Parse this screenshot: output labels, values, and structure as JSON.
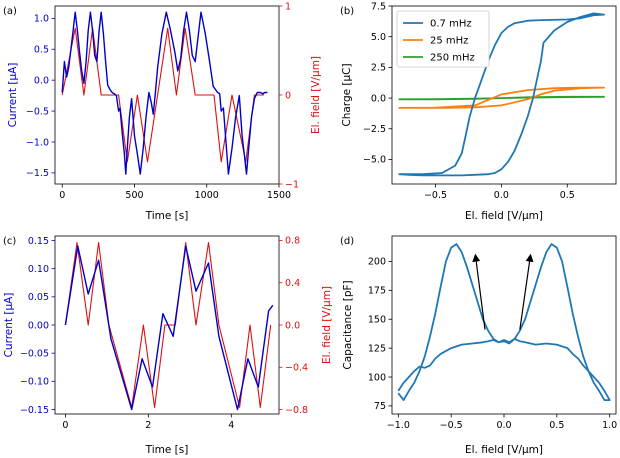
{
  "colors": {
    "blue": "#0000cc",
    "red": "#dd1111",
    "c0": "#1f77b4",
    "c1": "#ff7f0e",
    "c2": "#2ca02c"
  },
  "chart_data": [
    {
      "panel": "(a)",
      "type": "line",
      "xlabel": "Time [s]",
      "ylabel_left": "Current [μA]",
      "ylabel_right": "El. field [V/μm]",
      "xlim": [
        -50,
        1500
      ],
      "ylim_left": [
        -1.68,
        1.2
      ],
      "ylim_right": [
        -1,
        1
      ],
      "xticks": [
        0,
        500,
        1000,
        1500
      ],
      "yticks_left": [
        -1.5,
        -1.0,
        -0.5,
        0.0,
        0.5,
        1.0
      ],
      "yticks_right": [
        -1,
        0,
        1
      ],
      "series": [
        {
          "name": "Current",
          "axis": "left",
          "color": "blue",
          "x": [
            0,
            15,
            30,
            45,
            60,
            75,
            90,
            105,
            120,
            135,
            150,
            165,
            180,
            195,
            210,
            225,
            240,
            255,
            270,
            285,
            300,
            315,
            330,
            345,
            360,
            375,
            390,
            400,
            415,
            430,
            440,
            450,
            465,
            480,
            500,
            520,
            540,
            560,
            580,
            600,
            615,
            630,
            645,
            660,
            690,
            720,
            750,
            780,
            800,
            820,
            840,
            860,
            880,
            900,
            920,
            945,
            960,
            990,
            1020,
            1045,
            1060,
            1075,
            1090,
            1100,
            1115,
            1130,
            1150,
            1175,
            1200,
            1225,
            1245,
            1260,
            1275,
            1290,
            1310,
            1330,
            1350,
            1370,
            1390,
            1400,
            1420
          ],
          "y": [
            -0.2,
            0.3,
            0.05,
            0.2,
            0.5,
            0.8,
            1.1,
            0.8,
            0.45,
            0.15,
            -0.05,
            0.3,
            0.8,
            1.1,
            0.8,
            0.4,
            0.3,
            0.8,
            1.1,
            0.75,
            0.3,
            -0.08,
            -0.15,
            -0.2,
            -0.22,
            -0.25,
            -0.5,
            -0.45,
            -0.85,
            -1.2,
            -1.52,
            -1.1,
            -0.6,
            -0.3,
            -0.9,
            -1.2,
            -1.52,
            -1.1,
            -0.6,
            -0.2,
            -0.35,
            -0.55,
            -0.2,
            0.2,
            0.75,
            1.1,
            0.8,
            0.45,
            0.15,
            0.35,
            0.8,
            1.1,
            0.8,
            0.4,
            0.3,
            0.8,
            1.1,
            0.75,
            0.3,
            -0.1,
            -0.15,
            -0.2,
            -0.22,
            -0.5,
            -0.45,
            -0.9,
            -1.52,
            -1.1,
            -0.6,
            -0.25,
            -0.9,
            -1.2,
            -1.52,
            -1.1,
            -0.6,
            -0.3,
            -0.2,
            -0.2,
            -0.22,
            -0.2,
            -0.2
          ]
        },
        {
          "name": "El. field",
          "axis": "right",
          "color": "red",
          "x": [
            0,
            90,
            150,
            210,
            270,
            330,
            390,
            450,
            520,
            590,
            660,
            730,
            790,
            850,
            920,
            990,
            1050,
            1100,
            1175,
            1270,
            1330,
            1395
          ],
          "y": [
            0,
            0.75,
            0.0,
            0.75,
            0.0,
            0.0,
            0.0,
            -0.75,
            0.0,
            -0.75,
            0.0,
            0.75,
            0.0,
            0.75,
            0.0,
            0.0,
            0.0,
            -0.75,
            0.0,
            -0.75,
            0.0,
            0.0
          ]
        }
      ]
    },
    {
      "panel": "(b)",
      "type": "line",
      "xlabel": "El. field [V/μm]",
      "ylabel": "Charge [μC]",
      "xlim": [
        -0.83,
        0.87
      ],
      "ylim": [
        -7.0,
        7.5
      ],
      "xticks": [
        -0.5,
        0.0,
        0.5
      ],
      "yticks": [
        -5.0,
        -2.5,
        0.0,
        2.5,
        5.0,
        7.5
      ],
      "legend": "upper-left",
      "series": [
        {
          "name": "0.7 mHz",
          "color": "c0",
          "x": [
            -0.78,
            -0.6,
            -0.45,
            -0.35,
            -0.3,
            -0.27,
            -0.24,
            -0.2,
            -0.15,
            -0.1,
            -0.05,
            0.0,
            0.05,
            0.1,
            0.2,
            0.3,
            0.5,
            0.6,
            0.7,
            0.78,
            0.7,
            0.6,
            0.5,
            0.4,
            0.32,
            0.3,
            0.27,
            0.24,
            0.2,
            0.15,
            0.1,
            0.05,
            0.0,
            -0.05,
            -0.1,
            -0.2,
            -0.3,
            -0.5,
            -0.6,
            -0.7,
            -0.78
          ],
          "y": [
            -6.2,
            -6.2,
            -6.1,
            -5.5,
            -4.5,
            -3.0,
            -1.5,
            0.0,
            1.5,
            3.0,
            4.3,
            5.3,
            5.8,
            6.1,
            6.3,
            6.35,
            6.4,
            6.5,
            6.75,
            6.8,
            6.9,
            6.6,
            6.2,
            5.5,
            4.5,
            3.0,
            1.5,
            0.0,
            -1.5,
            -3.0,
            -4.3,
            -5.2,
            -5.8,
            -6.1,
            -6.2,
            -6.25,
            -6.3,
            -6.3,
            -6.3,
            -6.25,
            -6.2
          ]
        },
        {
          "name": "25 mHz",
          "color": "c1",
          "x": [
            -0.78,
            -0.5,
            -0.2,
            0.0,
            0.2,
            0.4,
            0.6,
            0.78,
            0.6,
            0.4,
            0.3,
            0.2,
            0.0,
            -0.2,
            -0.4,
            -0.6,
            -0.78
          ],
          "y": [
            -0.8,
            -0.78,
            -0.6,
            0.3,
            0.65,
            0.8,
            0.85,
            0.85,
            0.8,
            0.6,
            0.3,
            -0.1,
            -0.6,
            -0.75,
            -0.8,
            -0.8,
            -0.8
          ]
        },
        {
          "name": "250 mHz",
          "color": "c2",
          "x": [
            -0.78,
            -0.5,
            -0.2,
            0.0,
            0.2,
            0.5,
            0.78,
            0.5,
            0.2,
            0.0,
            -0.2,
            -0.5,
            -0.78
          ],
          "y": [
            -0.1,
            -0.08,
            -0.04,
            0.0,
            0.04,
            0.08,
            0.1,
            0.1,
            0.06,
            0.0,
            -0.06,
            -0.1,
            -0.1
          ]
        }
      ]
    },
    {
      "panel": "(c)",
      "type": "line",
      "xlabel": "Time [s]",
      "ylabel_left": "Current [μA]",
      "ylabel_right": "El. field [V/μm]",
      "xlim": [
        -0.25,
        5.15
      ],
      "ylim_left": [
        -0.158,
        0.158
      ],
      "ylim_right": [
        -0.842,
        0.842
      ],
      "xticks": [
        0,
        2,
        4
      ],
      "yticks_left": [
        -0.15,
        -0.1,
        -0.05,
        0.0,
        0.05,
        0.1,
        0.15
      ],
      "yticks_right": [
        -0.8,
        -0.4,
        0.0,
        0.4,
        0.8
      ],
      "series": [
        {
          "name": "Current",
          "axis": "left",
          "color": "blue",
          "x": [
            0,
            0.3,
            0.55,
            0.8,
            1.1,
            1.6,
            1.85,
            2.1,
            2.35,
            2.6,
            2.9,
            3.15,
            3.45,
            3.7,
            4.15,
            4.4,
            4.65,
            4.9,
            5.0
          ],
          "y": [
            0.0,
            0.14,
            0.055,
            0.115,
            -0.025,
            -0.15,
            -0.06,
            -0.11,
            0.02,
            -0.02,
            0.14,
            0.06,
            0.11,
            -0.02,
            -0.15,
            -0.06,
            -0.11,
            0.025,
            0.035
          ]
        },
        {
          "name": "El. field",
          "axis": "right",
          "color": "red",
          "x": [
            0,
            0.28,
            0.55,
            0.8,
            1.05,
            1.6,
            1.88,
            2.15,
            2.4,
            2.65,
            2.9,
            3.15,
            3.45,
            3.7,
            4.2,
            4.45,
            4.7,
            4.95
          ],
          "y": [
            0.0,
            0.78,
            0.0,
            0.78,
            0.0,
            -0.78,
            0.0,
            -0.78,
            0.0,
            0.0,
            0.78,
            0.0,
            0.78,
            0.0,
            -0.78,
            0.0,
            -0.78,
            0.0
          ]
        }
      ]
    },
    {
      "panel": "(d)",
      "type": "line",
      "xlabel": "El. field [V/μm]",
      "ylabel": "Capacitance [pF]",
      "xlim": [
        -1.06,
        1.06
      ],
      "ylim": [
        68,
        222
      ],
      "xticks": [
        -1.0,
        -0.5,
        0.0,
        0.5,
        1.0
      ],
      "yticks": [
        75,
        100,
        125,
        150,
        175,
        200
      ],
      "series": [
        {
          "name": "Capacitance",
          "color": "c0",
          "x": [
            -1.0,
            -0.95,
            -0.9,
            -0.85,
            -0.8,
            -0.75,
            -0.7,
            -0.65,
            -0.6,
            -0.55,
            -0.5,
            -0.45,
            -0.4,
            -0.35,
            -0.3,
            -0.25,
            -0.2,
            -0.15,
            -0.1,
            -0.05,
            0.0,
            0.05,
            0.1,
            0.15,
            0.2,
            0.25,
            0.3,
            0.35,
            0.4,
            0.45,
            0.5,
            0.55,
            0.6,
            0.65,
            0.7,
            0.75,
            0.8,
            0.85,
            0.9,
            0.95,
            1.0,
            0.95,
            0.9,
            0.85,
            0.8,
            0.75,
            0.7,
            0.65,
            0.6,
            0.5,
            0.4,
            0.3,
            0.2,
            0.15,
            0.1,
            0.05,
            0.0,
            -0.05,
            -0.1,
            -0.15,
            -0.2,
            -0.3,
            -0.4,
            -0.5,
            -0.6,
            -0.65,
            -0.7,
            -0.75,
            -0.8,
            -0.85,
            -0.9,
            -0.95,
            -1.0
          ],
          "y": [
            86,
            80,
            88,
            95,
            105,
            118,
            135,
            155,
            178,
            200,
            212,
            215,
            208,
            195,
            180,
            165,
            150,
            140,
            133,
            130,
            132,
            130,
            133,
            140,
            150,
            165,
            180,
            195,
            208,
            215,
            212,
            200,
            178,
            155,
            135,
            118,
            105,
            95,
            88,
            80,
            80,
            88,
            95,
            100,
            105,
            110,
            116,
            120,
            125,
            128,
            129,
            128,
            130,
            131,
            133,
            129,
            131,
            130,
            132,
            131,
            130,
            129,
            128,
            125,
            120,
            116,
            110,
            108,
            109,
            105,
            100,
            95,
            88
          ]
        }
      ],
      "annotations": [
        {
          "type": "arrow",
          "from": [
            -0.18,
            141
          ],
          "to": [
            -0.27,
            205
          ]
        },
        {
          "type": "arrow",
          "from": [
            0.15,
            141
          ],
          "to": [
            0.25,
            205
          ]
        }
      ]
    }
  ]
}
